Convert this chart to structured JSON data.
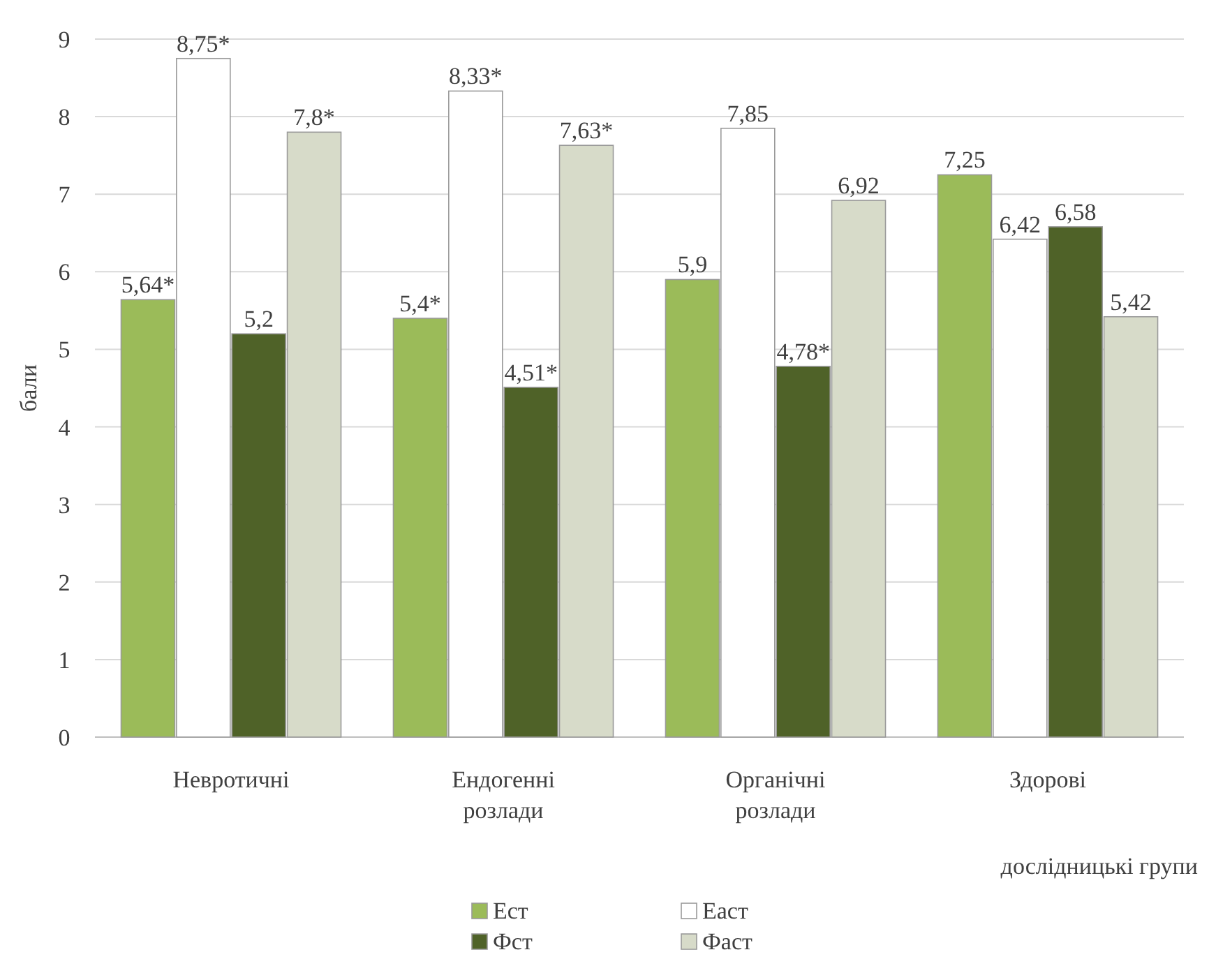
{
  "chart_data": {
    "type": "bar",
    "xlabel": "дослідницькі групи",
    "ylabel": "бали",
    "categories": [
      "Невротичні",
      "Ендогенні розлади",
      "Органічні розлади",
      "Здорові"
    ],
    "ylim": [
      0,
      9
    ],
    "yticks": [
      0,
      1,
      2,
      3,
      4,
      5,
      6,
      7,
      8,
      9
    ],
    "grid": "y",
    "legend": "bottom",
    "series": [
      {
        "name": "Ест",
        "color": "#9bbb59",
        "values": [
          5.64,
          5.4,
          5.9,
          7.25
        ],
        "value_labels": [
          "5,64*",
          "5,4*",
          "5,9",
          "7,25"
        ]
      },
      {
        "name": "Еаст",
        "color": "#ffffff",
        "values": [
          8.75,
          8.33,
          7.85,
          6.42
        ],
        "value_labels": [
          "8,75*",
          "8,33*",
          "7,85",
          "6,42"
        ]
      },
      {
        "name": "Фст",
        "color": "#4f6228",
        "values": [
          5.2,
          4.51,
          4.78,
          6.58
        ],
        "value_labels": [
          "5,2",
          "4,51*",
          "4,78*",
          "6,58"
        ]
      },
      {
        "name": "Фаст",
        "color": "#d7dbc9",
        "values": [
          7.8,
          7.63,
          6.92,
          5.42
        ],
        "value_labels": [
          "7,8*",
          "7,63*",
          "6,92",
          "5,42"
        ]
      }
    ]
  }
}
